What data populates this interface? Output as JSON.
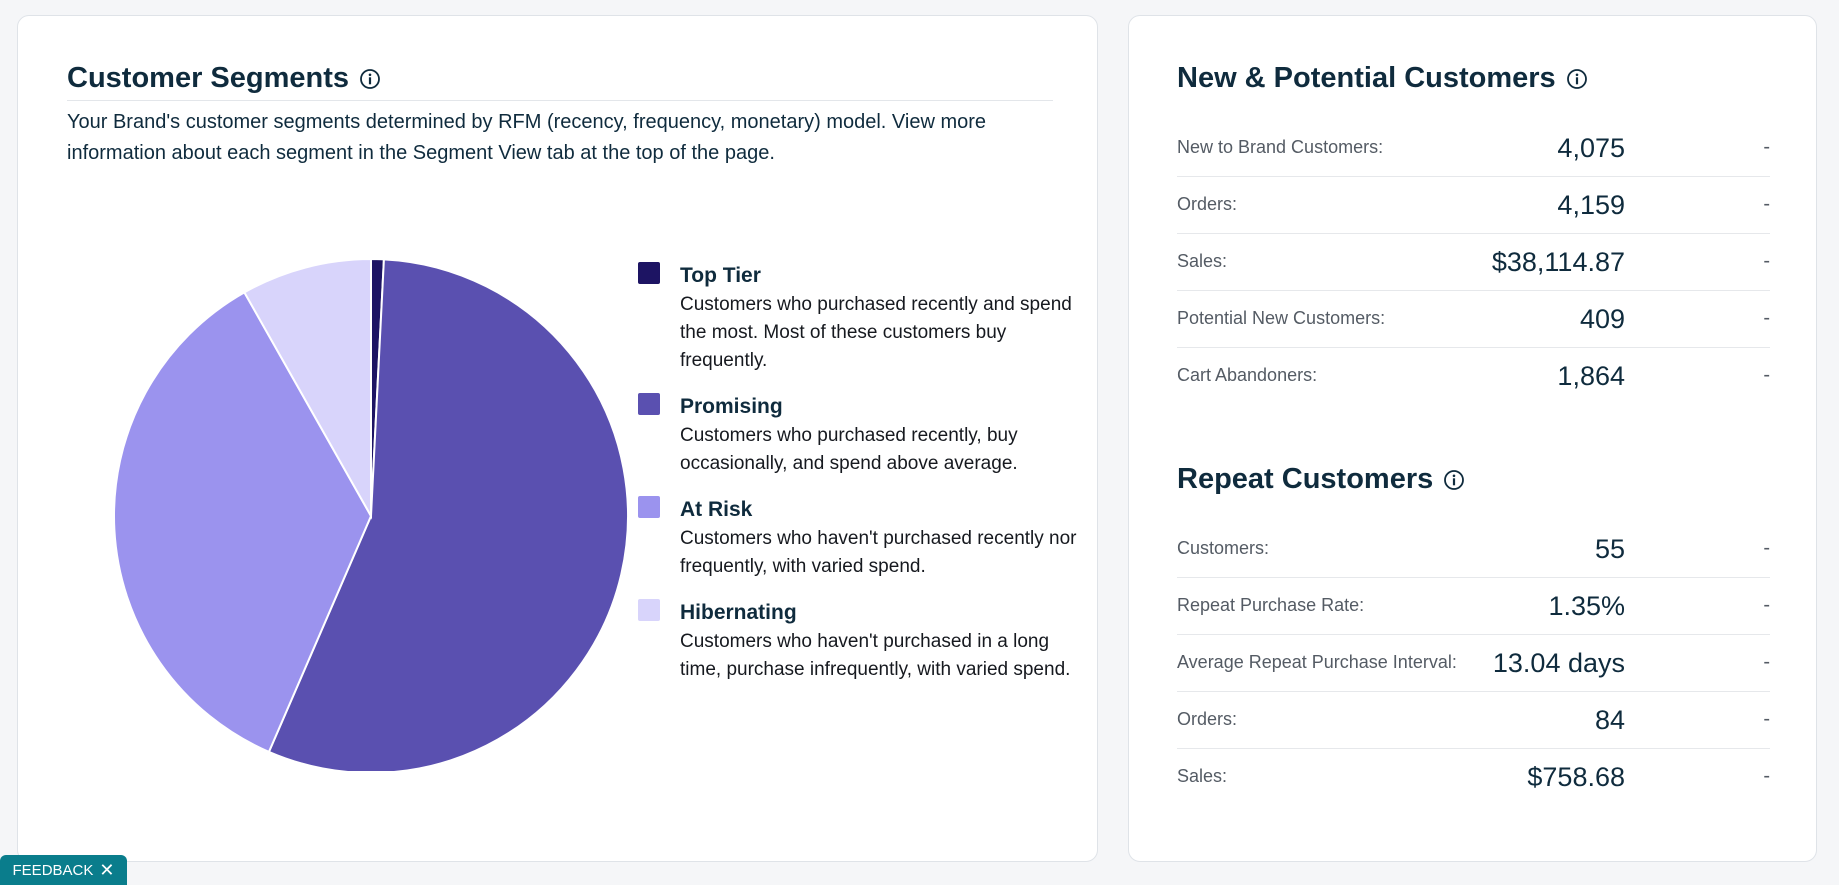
{
  "segments": {
    "title": "Customer Segments",
    "description": "Your Brand's customer segments determined by RFM (recency, frequency, monetary) model. View more information about each segment in the Segment View tab at the top of the page.",
    "legend": [
      {
        "name": "Top Tier",
        "color": "#1d1463",
        "description": "Customers who purchased recently and spend the most. Most of these customers buy frequently."
      },
      {
        "name": "Promising",
        "color": "#5a50b0",
        "description": "Customers who purchased recently, buy occasionally, and spend above average."
      },
      {
        "name": "At Risk",
        "color": "#9b93ee",
        "description": "Customers who haven't purchased recently nor frequently, with varied spend."
      },
      {
        "name": "Hibernating",
        "color": "#d8d4fb",
        "description": "Customers who haven't purchased in a long time, purchase infrequently, with varied spend."
      }
    ]
  },
  "chart_data": {
    "type": "pie",
    "categories": [
      "Top Tier",
      "Promising",
      "At Risk",
      "Hibernating"
    ],
    "values": [
      0.8,
      55.7,
      35.3,
      8.2
    ],
    "colors": [
      "#1d1463",
      "#5a50b0",
      "#9b93ee",
      "#d8d4fb"
    ]
  },
  "new_customers": {
    "title": "New & Potential Customers",
    "rows": [
      {
        "label": "New to Brand Customers:",
        "value": "4,075",
        "change": "-"
      },
      {
        "label": "Orders:",
        "value": "4,159",
        "change": "-"
      },
      {
        "label": "Sales:",
        "value": "$38,114.87",
        "change": "-"
      },
      {
        "label": "Potential New Customers:",
        "value": "409",
        "change": "-"
      },
      {
        "label": "Cart Abandoners:",
        "value": "1,864",
        "change": "-"
      }
    ]
  },
  "repeat_customers": {
    "title": "Repeat Customers",
    "rows": [
      {
        "label": "Customers:",
        "value": "55",
        "change": "-"
      },
      {
        "label": "Repeat Purchase Rate:",
        "value": "1.35%",
        "change": "-"
      },
      {
        "label": "Average Repeat Purchase Interval:",
        "value": "13.04 days",
        "change": "-"
      },
      {
        "label": "Orders:",
        "value": "84",
        "change": "-"
      },
      {
        "label": "Sales:",
        "value": "$758.68",
        "change": "-"
      }
    ]
  },
  "feedback": {
    "label": "FEEDBACK",
    "close_symbol": "✕"
  },
  "icons": {
    "info": "info-circle-icon",
    "close": "close-icon"
  }
}
